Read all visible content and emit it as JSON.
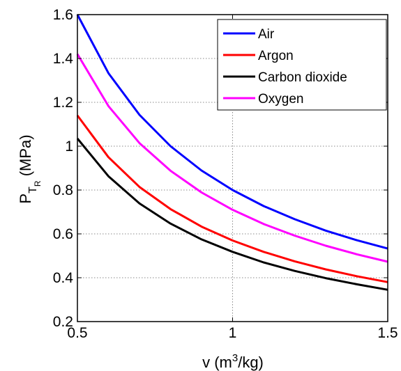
{
  "chart_data": {
    "type": "line",
    "xlabel": {
      "base": "v (m",
      "sup": "3",
      "rest": "/kg)"
    },
    "ylabel": {
      "base": "P",
      "sub": "T",
      "subsub": "R",
      "rest": "  (MPa)"
    },
    "xlim": [
      0.5,
      1.5
    ],
    "ylim": [
      0.2,
      1.6
    ],
    "xticks": [
      0.5,
      1,
      1.5
    ],
    "yticks": [
      0.2,
      0.4,
      0.6,
      0.8,
      1.0,
      1.2,
      1.4,
      1.6
    ],
    "grid": true,
    "legend_position": "top-right",
    "x": [
      0.5,
      0.6,
      0.7,
      0.8,
      0.9,
      1.0,
      1.1,
      1.2,
      1.3,
      1.4,
      1.5
    ],
    "series": [
      {
        "name": "Air",
        "color": "#0000ff",
        "values": [
          1.6,
          1.333,
          1.143,
          1.0,
          0.889,
          0.8,
          0.727,
          0.667,
          0.615,
          0.571,
          0.533
        ]
      },
      {
        "name": "Argon",
        "color": "#ff0000",
        "values": [
          1.14,
          0.95,
          0.814,
          0.713,
          0.633,
          0.57,
          0.518,
          0.475,
          0.438,
          0.407,
          0.38
        ]
      },
      {
        "name": "Carbon dioxide",
        "color": "#000000",
        "values": [
          1.035,
          0.863,
          0.739,
          0.647,
          0.575,
          0.518,
          0.47,
          0.431,
          0.398,
          0.37,
          0.345
        ]
      },
      {
        "name": "Oxygen",
        "color": "#ff00ff",
        "values": [
          1.42,
          1.183,
          1.014,
          0.888,
          0.789,
          0.71,
          0.645,
          0.592,
          0.546,
          0.507,
          0.473
        ]
      }
    ]
  }
}
